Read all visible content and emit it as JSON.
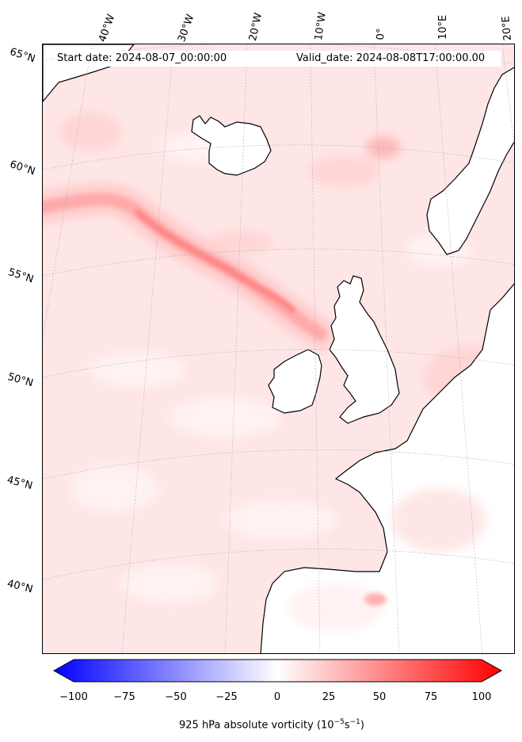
{
  "header": {
    "start_label": "Start date: 2024-08-07_00:00:00",
    "valid_label": "Valid_date: 2024-08-08T17:00:00.00"
  },
  "longitude_labels": [
    "40°W",
    "30°W",
    "20°W",
    "10°W",
    "0°",
    "10°E",
    "20°E"
  ],
  "latitude_labels": [
    "65°N",
    "60°N",
    "55°N",
    "50°N",
    "45°N",
    "40°N"
  ],
  "colorbar": {
    "ticks": [
      "−100",
      "−75",
      "−50",
      "−25",
      "0",
      "25",
      "50",
      "75",
      "100"
    ],
    "title_text": "925 hPa absolute vorticity (10",
    "exp1": "−5",
    "mid": "s",
    "exp2": "−1",
    "close": ")",
    "range": [
      -100,
      100
    ],
    "colormap": "bwr",
    "colors": {
      "negative": "#0000ff",
      "zero": "#ffffff",
      "positive": "#ff0000"
    }
  },
  "colors": {
    "coastline": "#000000",
    "gridline": "#b0b0b0",
    "land": "#ffffff"
  }
}
